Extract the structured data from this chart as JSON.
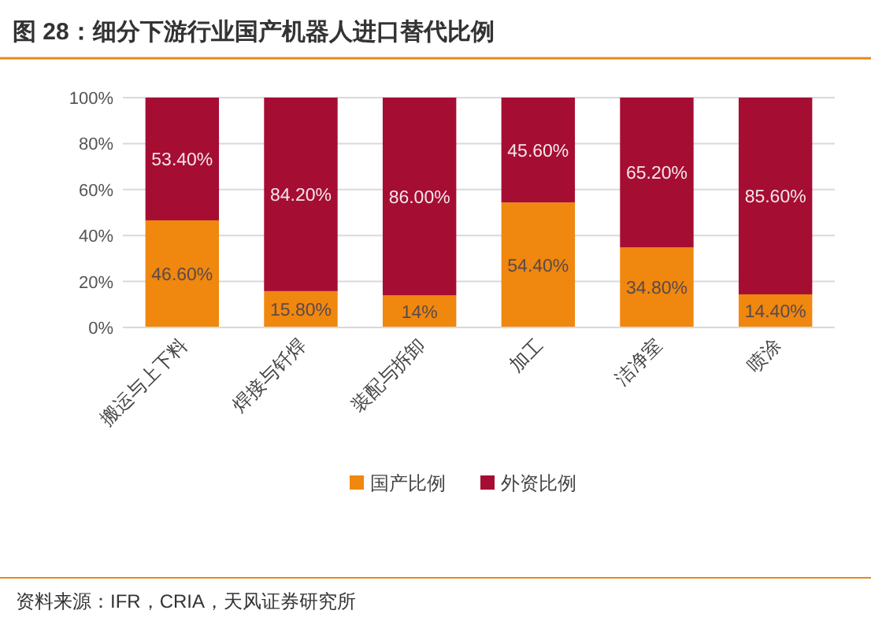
{
  "chart_data": {
    "type": "bar",
    "title": "图 28：细分下游行业国产机器人进口替代比例",
    "categories": [
      "搬运与上下料",
      "焊接与钎焊",
      "装配与拆卸",
      "加工",
      "洁净室",
      "喷涂"
    ],
    "series": [
      {
        "name": "国产比例",
        "color": "#f0870f",
        "values": [
          46.6,
          15.8,
          14,
          54.4,
          34.8,
          14.4
        ],
        "value_labels": [
          "46.60%",
          "15.80%",
          "14%",
          "54.40%",
          "34.80%",
          "14.40%"
        ]
      },
      {
        "name": "外资比例",
        "color": "#a60d33",
        "values": [
          53.4,
          84.2,
          86,
          45.6,
          65.2,
          85.6
        ],
        "value_labels": [
          "53.40%",
          "84.20%",
          "86.00%",
          "45.60%",
          "65.20%",
          "85.60%"
        ]
      }
    ],
    "stacked": true,
    "ylim": [
      0,
      100
    ],
    "yticks": [
      {
        "value": 0,
        "label": "0%"
      },
      {
        "value": 20,
        "label": "20%"
      },
      {
        "value": 40,
        "label": "40%"
      },
      {
        "value": 60,
        "label": "60%"
      },
      {
        "value": 80,
        "label": "80%"
      },
      {
        "value": 100,
        "label": "100%"
      }
    ],
    "grid": "y",
    "legend": "bottom",
    "annotations": [
      "资料来源：IFR，CRIA，天风证券研究所"
    ]
  }
}
